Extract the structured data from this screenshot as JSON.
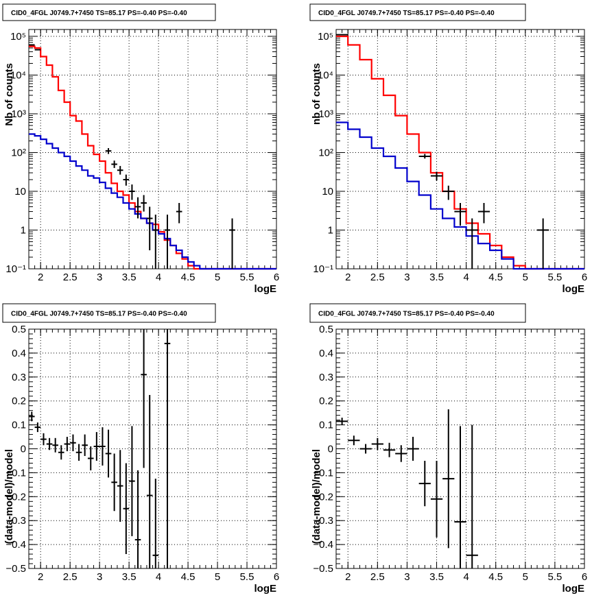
{
  "colors": {
    "data": "#000000",
    "total_model": "#ff0000",
    "background_model": "#0000cc",
    "grid": "#000000"
  },
  "chart_data": [
    {
      "type": "step",
      "title": "CID0_4FGL J0749.7+7450 TS=85.17 PS=-0.40 PS=-0.40",
      "xlabel": "logE",
      "ylabel": "Nb of counts",
      "xlim": [
        1.8,
        6.0
      ],
      "ylim": [
        0.1,
        150000
      ],
      "log_y": true,
      "grid": true,
      "x_ticks": [
        "2",
        "2.5",
        "3",
        "3.5",
        "4",
        "4.5",
        "5",
        "5.5",
        "6"
      ],
      "y_ticks": [
        "10⁻¹",
        "1",
        "10",
        "10²",
        "10³",
        "10⁴",
        "10⁵"
      ],
      "bin_edges": [
        1.8,
        1.9,
        2.0,
        2.1,
        2.2,
        2.3,
        2.4,
        2.5,
        2.6,
        2.7,
        2.8,
        2.9,
        3.0,
        3.1,
        3.2,
        3.3,
        3.4,
        3.5,
        3.6,
        3.7,
        3.8,
        3.9,
        4.0,
        4.1,
        4.2,
        4.3,
        4.4,
        4.5,
        4.6,
        4.7,
        4.8,
        4.9,
        5.0,
        5.1,
        5.2,
        5.3,
        5.4,
        5.5,
        5.6,
        5.7,
        5.8,
        5.9,
        6.0
      ],
      "series": [
        {
          "role": "total_model",
          "values": [
            55000,
            50000,
            30000,
            18000,
            9000,
            4000,
            2000,
            900,
            650,
            300,
            150,
            90,
            60,
            30,
            16,
            10,
            8,
            5,
            3,
            2,
            1.5,
            1.4,
            0.9,
            0.55,
            0.4,
            0.25,
            0.18,
            0.12,
            0.1,
            0.1,
            0.1,
            0.1,
            0.1,
            0.1,
            0.1,
            0.1,
            0.1,
            0.1,
            0.1,
            0.1,
            0.1,
            0.1
          ]
        },
        {
          "role": "background_model",
          "values": [
            300,
            270,
            220,
            170,
            130,
            100,
            80,
            60,
            45,
            35,
            25,
            22,
            17,
            12,
            9,
            7,
            5,
            3.5,
            2.6,
            2.0,
            1.5,
            1.0,
            0.8,
            0.6,
            0.4,
            0.3,
            0.2,
            0.15,
            0.12,
            0.1,
            0.1,
            0.1,
            0.1,
            0.1,
            0.1,
            0.1,
            0.1,
            0.1,
            0.1,
            0.1,
            0.1,
            0.1
          ]
        }
      ],
      "points": [
        {
          "x": 1.85,
          "y": 60000,
          "ylo": 58000,
          "yhi": 62000
        },
        {
          "x": 1.95,
          "y": 45000,
          "ylo": 44000,
          "yhi": 46000
        },
        {
          "x": 3.15,
          "y": 110,
          "ylo": 92,
          "yhi": 130
        },
        {
          "x": 3.25,
          "y": 50,
          "ylo": 40,
          "yhi": 62
        },
        {
          "x": 3.35,
          "y": 35,
          "ylo": 27,
          "yhi": 45
        },
        {
          "x": 3.45,
          "y": 20,
          "ylo": 14,
          "yhi": 27
        },
        {
          "x": 3.55,
          "y": 10,
          "ylo": 6,
          "yhi": 15
        },
        {
          "x": 3.65,
          "y": 4,
          "ylo": 2,
          "yhi": 7
        },
        {
          "x": 3.75,
          "y": 5,
          "ylo": 3,
          "yhi": 8
        },
        {
          "x": 3.85,
          "y": 2,
          "ylo": 0.3,
          "yhi": 4
        },
        {
          "x": 3.95,
          "y": 1,
          "ylo": 0.1,
          "yhi": 2.5
        },
        {
          "x": 4.15,
          "y": 1,
          "ylo": 0.1,
          "yhi": 2.5
        },
        {
          "x": 4.35,
          "y": 3,
          "ylo": 1.5,
          "yhi": 5
        },
        {
          "x": 5.25,
          "y": 1,
          "ylo": 0.1,
          "yhi": 2
        }
      ]
    },
    {
      "type": "step",
      "title": "CID0_4FGL J0749.7+7450 TS=85.17 PS=-0.40 PS=-0.40",
      "xlabel": "logE",
      "ylabel": "nb of counts",
      "xlim": [
        1.8,
        6.0
      ],
      "ylim": [
        0.1,
        150000
      ],
      "log_y": true,
      "grid": true,
      "x_ticks": [
        "2",
        "2.5",
        "3",
        "3.5",
        "4",
        "4.5",
        "5",
        "5.5",
        "6"
      ],
      "y_ticks": [
        "10⁻¹",
        "1",
        "10",
        "10²",
        "10³",
        "10⁴",
        "10⁵"
      ],
      "bin_edges": [
        1.8,
        2.0,
        2.2,
        2.4,
        2.6,
        2.8,
        3.0,
        3.2,
        3.4,
        3.6,
        3.8,
        4.0,
        4.2,
        4.4,
        4.6,
        4.8,
        5.0,
        5.2,
        5.4,
        5.6,
        5.8,
        6.0
      ],
      "series": [
        {
          "role": "total_model",
          "values": [
            100000,
            60000,
            25000,
            8000,
            3000,
            900,
            300,
            100,
            30,
            10,
            3.5,
            1.5,
            0.8,
            0.4,
            0.2,
            0.12,
            0.1,
            0.1,
            0.1,
            0.1,
            0.1
          ]
        },
        {
          "role": "background_model",
          "values": [
            600,
            400,
            250,
            130,
            80,
            40,
            18,
            8,
            3.5,
            2,
            1.2,
            0.7,
            0.45,
            0.3,
            0.18,
            0.1,
            0.1,
            0.1,
            0.1,
            0.1,
            0.1
          ]
        }
      ],
      "points": [
        {
          "x": 1.9,
          "y": 110000,
          "ylo": 107000,
          "yhi": 113000
        },
        {
          "x": 3.3,
          "y": 80,
          "ylo": 70,
          "yhi": 92
        },
        {
          "x": 3.5,
          "y": 25,
          "ylo": 19,
          "yhi": 32
        },
        {
          "x": 3.7,
          "y": 10,
          "ylo": 6,
          "yhi": 14
        },
        {
          "x": 3.9,
          "y": 3,
          "ylo": 1.3,
          "yhi": 5
        },
        {
          "x": 4.1,
          "y": 1,
          "ylo": 0.1,
          "yhi": 2
        },
        {
          "x": 4.3,
          "y": 3,
          "ylo": 1.5,
          "yhi": 5
        },
        {
          "x": 5.3,
          "y": 1,
          "ylo": 0.1,
          "yhi": 2
        }
      ]
    },
    {
      "type": "scatter",
      "title": "CID0_4FGL J0749.7+7450 TS=85.17 PS=-0.40 PS=-0.40",
      "xlabel": "logE",
      "ylabel": "(data-model)/model",
      "xlim": [
        1.8,
        6.0
      ],
      "ylim": [
        -0.5,
        0.5
      ],
      "log_y": false,
      "grid": true,
      "x_ticks": [
        "2",
        "2.5",
        "3",
        "3.5",
        "4",
        "4.5",
        "5",
        "5.5",
        "6"
      ],
      "y_ticks": [
        "−0.5",
        "−0.4",
        "−0.3",
        "−0.2",
        "−0.1",
        "0",
        "0.1",
        "0.2",
        "0.3",
        "0.4",
        "0.5"
      ],
      "x_half_width": 0.05,
      "points": [
        {
          "x": 1.85,
          "y": 0.135,
          "err": 0.02
        },
        {
          "x": 1.95,
          "y": 0.09,
          "err": 0.02
        },
        {
          "x": 2.05,
          "y": 0.04,
          "err": 0.025
        },
        {
          "x": 2.15,
          "y": 0.02,
          "err": 0.025
        },
        {
          "x": 2.25,
          "y": 0.015,
          "err": 0.03
        },
        {
          "x": 2.35,
          "y": -0.015,
          "err": 0.03
        },
        {
          "x": 2.45,
          "y": 0.02,
          "err": 0.03
        },
        {
          "x": 2.55,
          "y": 0.025,
          "err": 0.035
        },
        {
          "x": 2.65,
          "y": -0.015,
          "err": 0.035
        },
        {
          "x": 2.75,
          "y": 0.015,
          "err": 0.045
        },
        {
          "x": 2.85,
          "y": -0.04,
          "err": 0.05
        },
        {
          "x": 2.95,
          "y": 0.01,
          "err": 0.06
        },
        {
          "x": 3.05,
          "y": 0.01,
          "err": 0.08
        },
        {
          "x": 3.15,
          "y": -0.02,
          "err": 0.1
        },
        {
          "x": 3.25,
          "y": -0.14,
          "err": 0.12
        },
        {
          "x": 3.35,
          "y": -0.155,
          "err": 0.15
        },
        {
          "x": 3.45,
          "y": -0.25,
          "err": 0.19
        },
        {
          "x": 3.55,
          "y": -0.135,
          "err": 0.23
        },
        {
          "x": 3.65,
          "y": -0.38,
          "err": 0.29
        },
        {
          "x": 3.75,
          "y": 0.31,
          "err": 0.39
        },
        {
          "x": 3.85,
          "y": -0.195,
          "err": 0.42
        },
        {
          "x": 3.95,
          "y": -0.445,
          "err": 0.32
        },
        {
          "x": 4.15,
          "y": 0.44,
          "err": 0.95
        }
      ]
    },
    {
      "type": "scatter",
      "title": "CID0_4FGL J0749.7+7450 TS=85.17 PS=-0.40 PS=-0.40",
      "xlabel": "logE",
      "ylabel": "(data-model)/model",
      "xlim": [
        1.8,
        6.0
      ],
      "ylim": [
        -0.5,
        0.5
      ],
      "log_y": false,
      "grid": true,
      "x_ticks": [
        "2",
        "2.5",
        "3",
        "3.5",
        "4",
        "4.5",
        "5",
        "5.5",
        "6"
      ],
      "y_ticks": [
        "−0.5",
        "−0.4",
        "−0.3",
        "−0.2",
        "−0.1",
        "0",
        "0.1",
        "0.2",
        "0.3",
        "0.4",
        "0.5"
      ],
      "x_half_width": 0.1,
      "points": [
        {
          "x": 1.9,
          "y": 0.115,
          "err": 0.015
        },
        {
          "x": 2.1,
          "y": 0.035,
          "err": 0.02
        },
        {
          "x": 2.3,
          "y": 0.0,
          "err": 0.02
        },
        {
          "x": 2.5,
          "y": 0.02,
          "err": 0.025
        },
        {
          "x": 2.7,
          "y": -0.005,
          "err": 0.03
        },
        {
          "x": 2.9,
          "y": -0.02,
          "err": 0.035
        },
        {
          "x": 3.1,
          "y": 0.0,
          "err": 0.05
        },
        {
          "x": 3.3,
          "y": -0.145,
          "err": 0.095
        },
        {
          "x": 3.5,
          "y": -0.21,
          "err": 0.16
        },
        {
          "x": 3.7,
          "y": -0.125,
          "err": 0.29
        },
        {
          "x": 3.9,
          "y": -0.305,
          "err": 0.4
        },
        {
          "x": 4.1,
          "y": -0.445,
          "err": 0.545
        }
      ]
    }
  ]
}
